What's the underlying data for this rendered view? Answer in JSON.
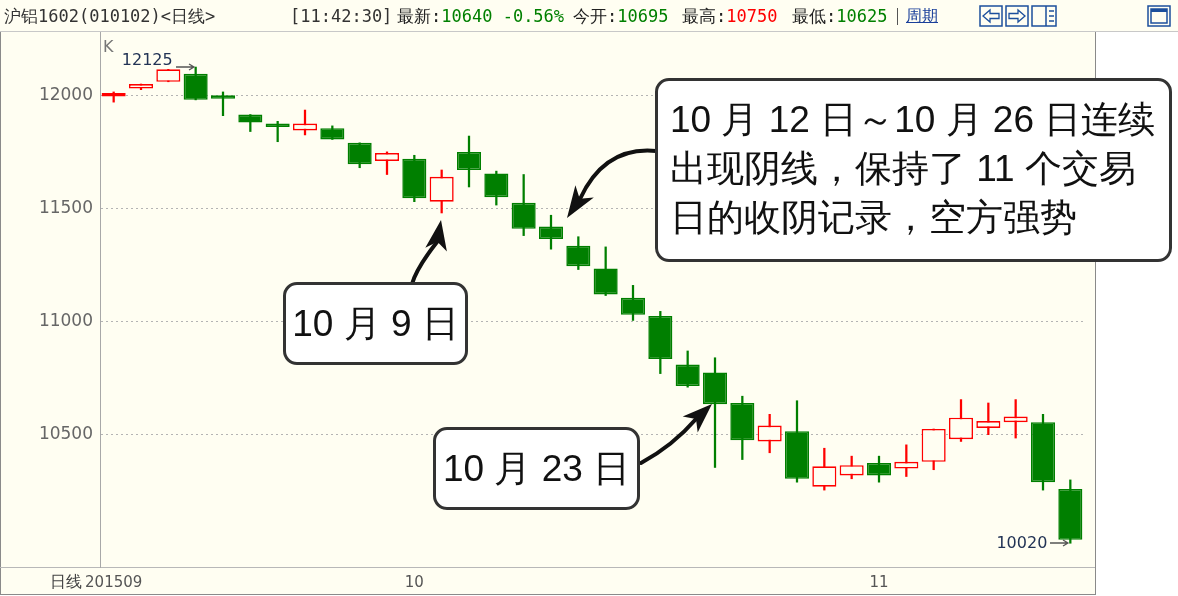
{
  "chart_data": {
    "type": "candlestick",
    "title": "沪铝1602(010102)<日线>",
    "xlabel": "日线",
    "categories": [
      "201509",
      null,
      null,
      null,
      null,
      null,
      null,
      null,
      null,
      null,
      null,
      "10",
      null,
      null,
      null,
      null,
      null,
      null,
      null,
      null,
      null,
      null,
      null,
      null,
      null,
      null,
      null,
      null,
      "11",
      null,
      null,
      null,
      null,
      null,
      null,
      null
    ],
    "ohlc": [
      [
        11995,
        12015,
        11970,
        12010
      ],
      [
        12030,
        12050,
        12025,
        12050
      ],
      [
        12060,
        12115,
        12060,
        12115
      ],
      [
        12095,
        12125,
        11980,
        11980
      ],
      [
        12000,
        12015,
        11910,
        11985
      ],
      [
        11915,
        11915,
        11840,
        11880
      ],
      [
        11875,
        11885,
        11795,
        11860
      ],
      [
        11845,
        11935,
        11825,
        11875
      ],
      [
        11855,
        11865,
        11805,
        11805
      ],
      [
        11790,
        11790,
        11680,
        11695
      ],
      [
        11710,
        11750,
        11650,
        11745
      ],
      [
        11720,
        11735,
        11530,
        11545
      ],
      [
        11530,
        11670,
        11480,
        11640
      ],
      [
        11750,
        11820,
        11595,
        11670
      ],
      [
        11655,
        11665,
        11515,
        11550
      ],
      [
        11525,
        11650,
        11380,
        11410
      ],
      [
        11420,
        11470,
        11320,
        11365
      ],
      [
        11335,
        11375,
        11230,
        11245
      ],
      [
        11235,
        11330,
        11115,
        11120
      ],
      [
        11105,
        11160,
        11005,
        11030
      ],
      [
        11025,
        11045,
        10770,
        10835
      ],
      [
        10810,
        10870,
        10710,
        10715
      ],
      [
        10775,
        10840,
        10355,
        10635
      ],
      [
        10640,
        10670,
        10390,
        10475
      ],
      [
        10470,
        10590,
        10420,
        10540
      ],
      [
        10515,
        10650,
        10290,
        10305
      ],
      [
        10270,
        10440,
        10255,
        10360
      ],
      [
        10320,
        10405,
        10305,
        10365
      ],
      [
        10375,
        10405,
        10290,
        10320
      ],
      [
        10350,
        10455,
        10315,
        10380
      ],
      [
        10380,
        10525,
        10345,
        10525
      ],
      [
        10480,
        10655,
        10470,
        10575
      ],
      [
        10530,
        10640,
        10500,
        10560
      ],
      [
        10555,
        10655,
        10485,
        10580
      ],
      [
        10555,
        10590,
        10255,
        10290
      ],
      [
        10260,
        10300,
        10020,
        10035
      ]
    ],
    "colors": [
      "#ff0000",
      "#ff0000",
      "#ff0000",
      "#007f00",
      "#007f00",
      "#007f00",
      "#007f00",
      "#ff0000",
      "#007f00",
      "#007f00",
      "#ff0000",
      "#007f00",
      "#ff0000",
      "#007f00",
      "#007f00",
      "#007f00",
      "#007f00",
      "#007f00",
      "#007f00",
      "#007f00",
      "#007f00",
      "#007f00",
      "#007f00",
      "#007f00",
      "#ff0000",
      "#007f00",
      "#ff0000",
      "#ff0000",
      "#007f00",
      "#ff0000",
      "#ff0000",
      "#ff0000",
      "#ff0000",
      "#ff0000",
      "#007f00",
      "#007f00"
    ],
    "ylim": [
      9915,
      12280
    ],
    "yticks": [
      10500,
      11000,
      11500,
      12000
    ],
    "grid": "y",
    "annotations": [
      "[11:42:30]",
      "最新:10640 -0.56%",
      "今开:10695",
      "最高:10750",
      "最低:10625",
      "周期",
      "K",
      "12125",
      "10020",
      "10 月 9 日",
      "10 月 23 日",
      "10 月 12 日～10 月 26 日连续出现阴线，保持了 11 个交易日的收阴记录，空方强势"
    ]
  }
}
